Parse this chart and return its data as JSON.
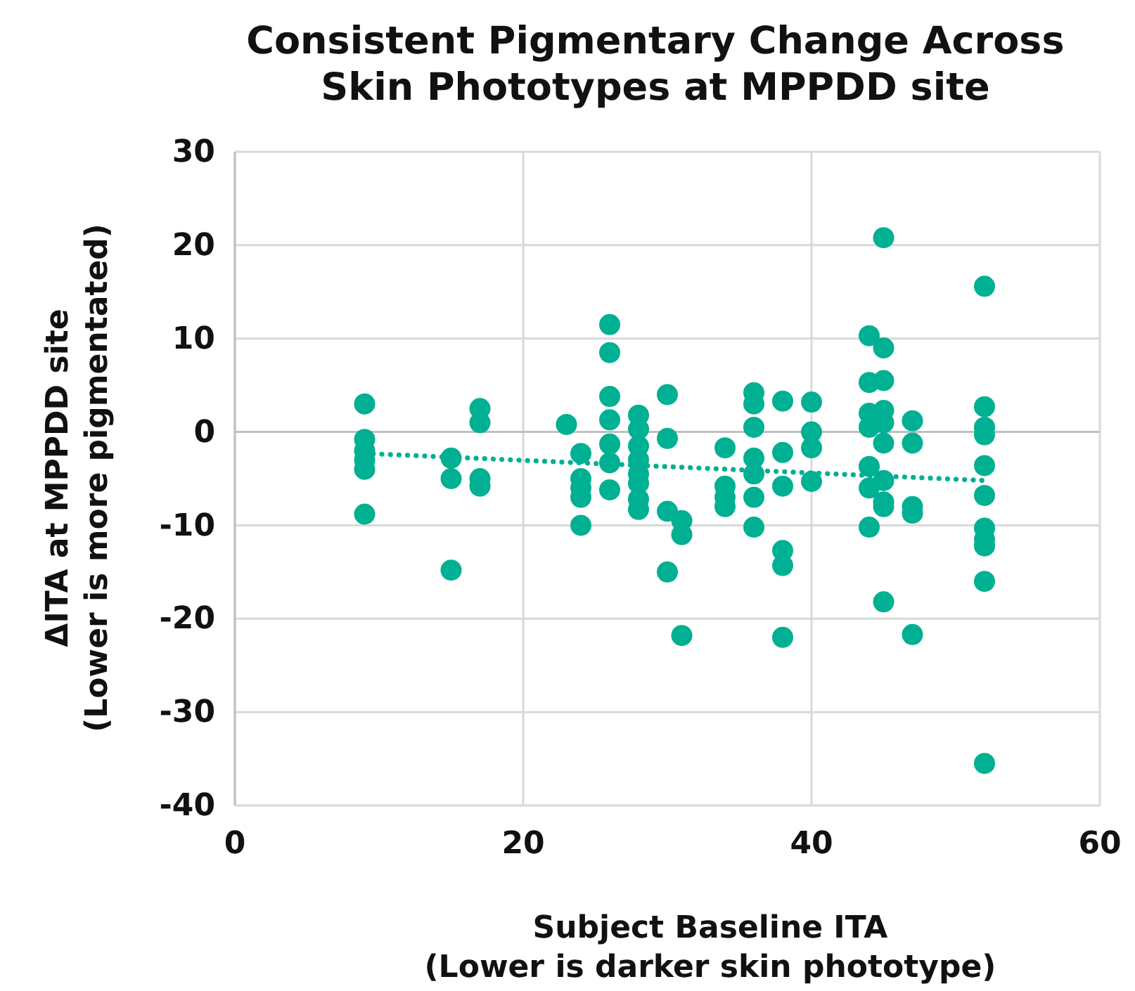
{
  "chart_data": {
    "type": "scatter",
    "title": "Consistent Pigmentary Change Across Skin Phototypes at MPPDD site",
    "xlabel": "Subject Baseline ITA\n(Lower is darker skin phototype)",
    "ylabel": "ΔITA at MPPDD site\n(Lower is more pigmentated)",
    "xlim": [
      0,
      60
    ],
    "xticks": [
      0,
      20,
      40,
      60
    ],
    "ylim": [
      -40,
      30
    ],
    "yticks": [
      -40,
      -30,
      -20,
      -10,
      0,
      10,
      20,
      30
    ],
    "grid": true,
    "series": [
      {
        "color": "#00b092",
        "marker": "circle",
        "x": [
          9,
          9,
          9,
          9,
          9,
          9,
          15,
          15,
          15,
          17,
          17,
          17,
          17,
          23,
          24,
          24,
          24,
          24,
          24,
          26,
          26,
          26,
          26,
          26,
          26,
          26,
          28,
          28,
          28,
          28,
          28,
          28,
          28,
          28,
          30,
          30,
          30,
          30,
          31,
          31,
          31,
          34,
          34,
          34,
          34,
          36,
          36,
          36,
          36,
          36,
          36,
          36,
          38,
          38,
          38,
          38,
          38,
          38,
          40,
          40,
          40,
          40,
          44,
          44,
          44,
          44,
          44,
          44,
          44,
          45,
          45,
          45,
          45,
          45,
          45,
          45,
          45,
          45,
          45,
          47,
          47,
          47,
          47,
          47,
          52,
          52,
          52,
          52,
          52,
          52,
          52,
          52,
          52,
          52,
          52
        ],
        "values": [
          3,
          -0.8,
          -2,
          -3,
          -4,
          -8.8,
          -2.8,
          -5,
          -14.8,
          2.5,
          1,
          -5,
          -5.8,
          0.8,
          -2.3,
          -5,
          -6,
          -7,
          -10,
          11.5,
          8.5,
          3.8,
          1.3,
          -1.3,
          -3.3,
          -6.2,
          1.8,
          0.3,
          -1.5,
          -3,
          -4.5,
          -5.5,
          -7.2,
          -8.3,
          4,
          -0.7,
          -8.5,
          -15,
          -9.5,
          -11,
          -21.8,
          -1.7,
          -5.8,
          -7,
          -8,
          4.2,
          3,
          0.5,
          -2.8,
          -4.5,
          -7,
          -10.2,
          3.3,
          -2.2,
          -5.8,
          -12.7,
          -14.3,
          -22,
          3.2,
          0,
          -1.7,
          -5.3,
          10.3,
          5.3,
          2,
          0.5,
          -3.7,
          -6,
          -10.2,
          20.8,
          9,
          5.5,
          2.3,
          1,
          -1.2,
          -5.2,
          -7.5,
          -8,
          -18.2,
          1.2,
          -1.2,
          -8,
          -8.7,
          -21.7,
          15.6,
          2.7,
          0.5,
          -0.3,
          -3.6,
          -6.8,
          -10.3,
          -11.5,
          -12.2,
          -16,
          -35.5
        ]
      },
      {
        "type": "line",
        "color": "#00b092",
        "line_style": "dotted",
        "marker": "none",
        "x": [
          9,
          52
        ],
        "values": [
          -2.3,
          -5.2
        ]
      }
    ]
  }
}
